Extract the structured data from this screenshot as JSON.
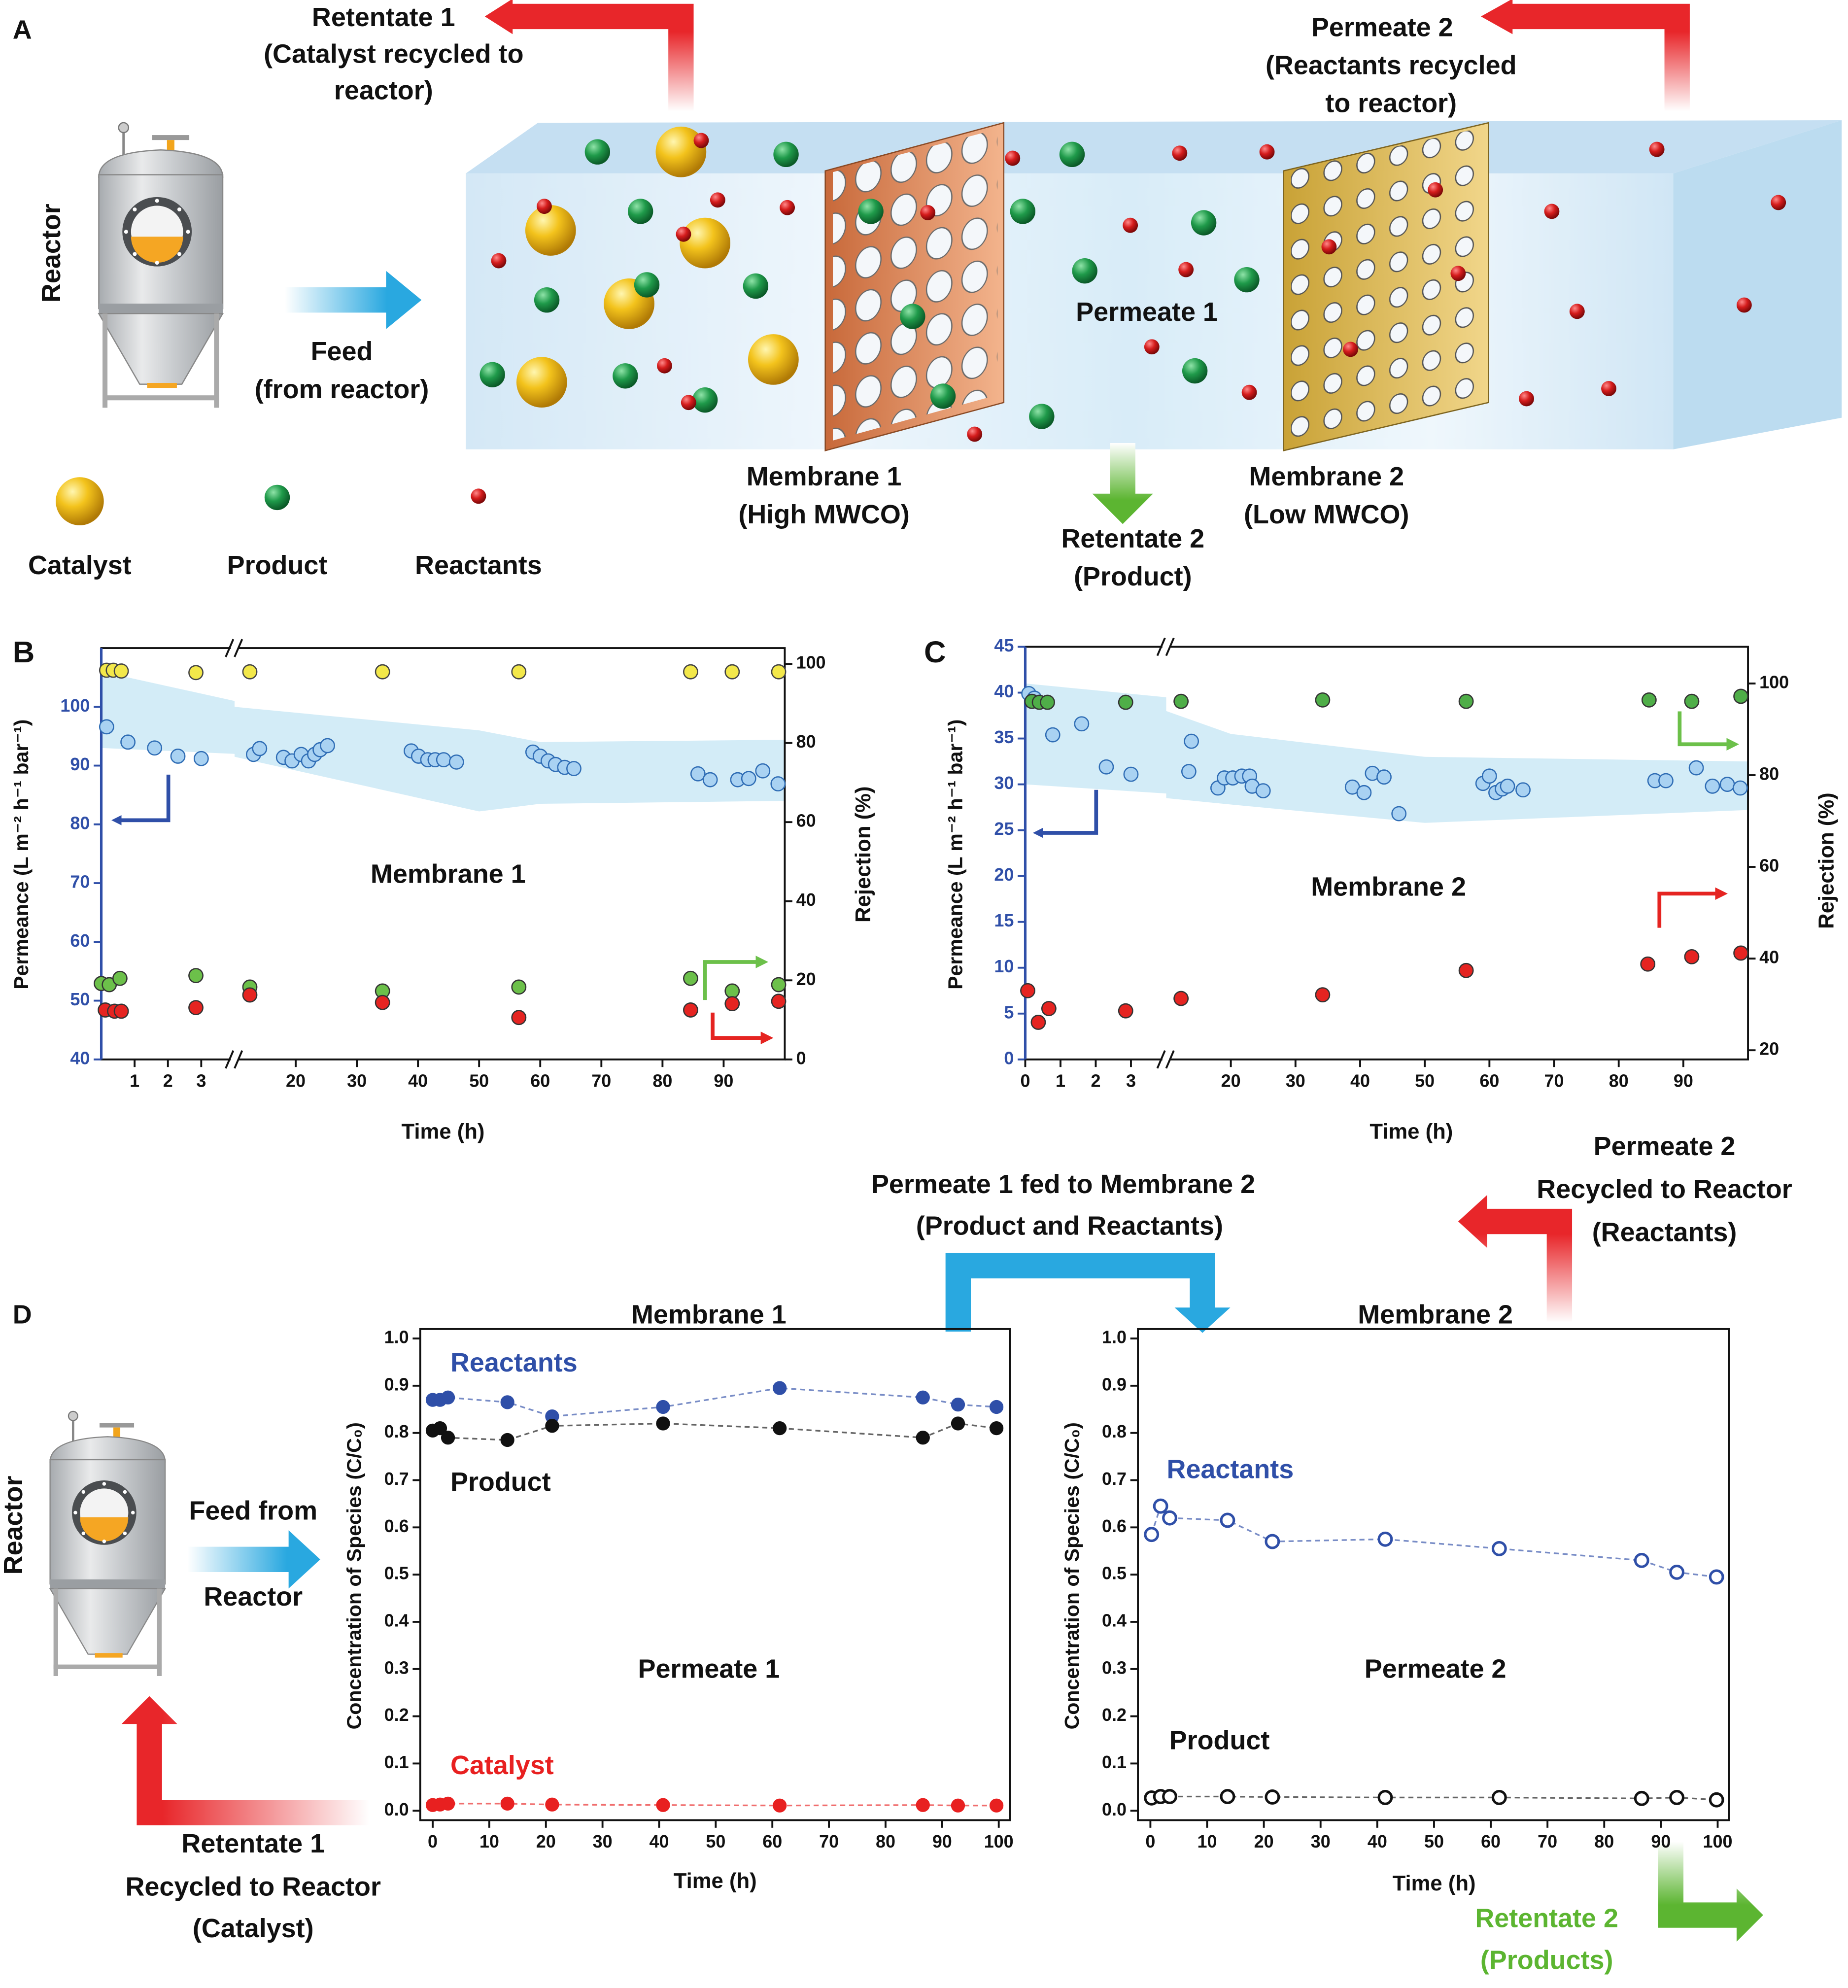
{
  "panel_a": {
    "label": "A",
    "retentate_1": [
      "Retentate 1",
      "(Catalyst recycled to",
      "reactor)"
    ],
    "permeate_2": [
      "Permeate 2",
      "(Reactants recycled",
      "to reactor)"
    ],
    "reactor": "Reactor",
    "feed": [
      "Feed",
      "(from reactor)"
    ],
    "permeate_1": "Permeate 1",
    "membrane_1": [
      "Membrane 1",
      "(High MWCO)"
    ],
    "retentate_2": [
      "Retentate 2",
      "(Product)"
    ],
    "membrane_2": [
      "Membrane 2",
      "(Low MWCO)"
    ],
    "legend": [
      "Catalyst",
      "Product",
      "Reactants"
    ]
  },
  "panel_d": {
    "label": "D",
    "reactor": "Reactor",
    "feed": [
      "Feed from",
      "Reactor"
    ],
    "permeate_1_fed": [
      "Permeate 1 fed to Membrane 2",
      "(Product and Reactants)"
    ],
    "permeate_2_recycled": [
      "Permeate 2",
      "Recycled to Reactor",
      "(Reactants)"
    ],
    "retentate_1_recycled": [
      "Retentate 1",
      "Recycled to Reactor",
      "(Catalyst)"
    ],
    "retentate_2": [
      "Retentate 2",
      "(Products)"
    ]
  },
  "chart_data": [
    {
      "type": "scatter",
      "label": "B",
      "annotation": "Membrane 1",
      "xlabel": "Time (h)",
      "ylabel": "Permeance (L m⁻² h⁻¹ bar⁻¹)",
      "y2label": "Rejection (%)",
      "ycolor": "#2f4fa8",
      "x_axis_break": true,
      "xlim": [
        0,
        100
      ],
      "xticks": [
        1,
        2,
        3,
        20,
        30,
        40,
        50,
        60,
        70,
        80,
        90
      ],
      "ylim": [
        40,
        110
      ],
      "yticks": [
        40,
        50,
        60,
        70,
        80,
        90,
        100
      ],
      "y2lim": [
        0,
        104
      ],
      "y2ticks": [
        0,
        20,
        40,
        60,
        80,
        100
      ],
      "band": {
        "color": "#d3ecf7",
        "x": [
          0,
          4,
          10,
          50,
          60,
          100
        ],
        "upper": [
          106,
          101,
          100,
          96,
          94,
          94.4
        ],
        "lower": [
          93,
          92,
          91.5,
          82.2,
          83.5,
          84
        ]
      },
      "series": [
        {
          "color": "#a9d2f2",
          "edgecolor": "#2f6db5",
          "x": [
            0.16,
            0.8,
            1.6,
            2.3,
            3.0,
            13.1,
            14.1,
            18,
            19.4,
            20.9,
            22.1,
            23.1,
            24,
            25.2,
            38.9,
            40.1,
            41.6,
            42.8,
            44.2,
            46.3,
            58.8,
            60,
            61.3,
            62.5,
            64,
            65.5,
            85.8,
            87.8,
            92.3,
            94.1,
            96.4,
            98.9
          ],
          "values": [
            96.6,
            94,
            93,
            91.6,
            91.2,
            91.9,
            92.9,
            91.4,
            90.8,
            91.9,
            90.8,
            91.9,
            92.7,
            93.4,
            92.5,
            91.6,
            91,
            91,
            91,
            90.6,
            92.3,
            91.6,
            90.8,
            90.2,
            89.7,
            89.5,
            88.6,
            87.6,
            87.6,
            87.8,
            89.1,
            86.9
          ]
        },
        {
          "color": "#f3e84a",
          "edgecolor": "#444",
          "axis": "y2",
          "x": [
            0.16,
            0.36,
            0.6,
            2.84,
            12.5,
            34.2,
            56.5,
            84.6,
            91.4,
            99
          ],
          "values": [
            98.4,
            98.4,
            98.2,
            97.8,
            98,
            98,
            98,
            98,
            98,
            98
          ]
        },
        {
          "color": "#6cc04a",
          "edgecolor": "#333",
          "axis": "y2",
          "x": [
            0,
            0.24,
            0.56,
            2.84,
            12.5,
            34.2,
            56.5,
            84.6,
            91.4,
            99
          ],
          "values": [
            19.2,
            18.9,
            20.5,
            21.2,
            18.3,
            17.3,
            18.3,
            20.5,
            17.3,
            18.9
          ]
        },
        {
          "color": "#e52421",
          "edgecolor": "#333",
          "axis": "y2",
          "x": [
            0.12,
            0.4,
            0.6,
            2.84,
            12.5,
            34.2,
            56.5,
            84.6,
            91.4,
            99
          ],
          "values": [
            12.5,
            12.2,
            12.2,
            13.1,
            16.3,
            14.4,
            10.6,
            12.5,
            14.1,
            14.7
          ]
        }
      ]
    },
    {
      "type": "scatter",
      "label": "C",
      "annotation": "Membrane 2",
      "xlabel": "Time (h)",
      "ylabel": "Permeance (L m⁻² h⁻¹ bar⁻¹)",
      "y2label": "Rejection (%)",
      "ycolor": "#2f4fa8",
      "x_axis_break": true,
      "xlim": [
        0,
        100
      ],
      "xticks": [
        0,
        1,
        2,
        3,
        20,
        30,
        40,
        50,
        60,
        70,
        80,
        90
      ],
      "ylim": [
        0,
        45
      ],
      "yticks": [
        0,
        5,
        10,
        15,
        20,
        25,
        30,
        35,
        40,
        45
      ],
      "y2lim": [
        18,
        108
      ],
      "y2ticks": [
        20,
        40,
        60,
        80,
        100
      ],
      "band": {
        "color": "#d3ecf7",
        "x": [
          0,
          4,
          10,
          20,
          50,
          100
        ],
        "upper": [
          41,
          39.5,
          38,
          35.5,
          33,
          32.5
        ],
        "lower": [
          30,
          29,
          28.5,
          27.8,
          25.8,
          27.2
        ]
      },
      "series": [
        {
          "color": "#a9d2f2",
          "edgecolor": "#2f6db5",
          "x": [
            0.1,
            0.26,
            0.78,
            1.6,
            2.3,
            3.0,
            13.9,
            13.5,
            18,
            19,
            20.3,
            21.7,
            22.9,
            23.3,
            25,
            38.8,
            40.6,
            41.9,
            43.7,
            46,
            59,
            60,
            61,
            62,
            62.8,
            65.2,
            85.6,
            87.3,
            92,
            94.5,
            96.8,
            98.8
          ],
          "values": [
            39.9,
            39.4,
            35.4,
            36.6,
            31.9,
            31.1,
            34.7,
            31.4,
            29.6,
            30.7,
            30.7,
            30.9,
            30.9,
            29.8,
            29.3,
            29.7,
            29.1,
            31.2,
            30.8,
            26.8,
            30.1,
            30.9,
            29.1,
            29.5,
            29.8,
            29.4,
            30.4,
            30.4,
            31.8,
            29.8,
            30,
            29.6
          ]
        },
        {
          "color": "#4fae48",
          "edgecolor": "#333",
          "axis": "y2",
          "x": [
            0.19,
            0.4,
            0.63,
            2.85,
            12.3,
            34.2,
            56.4,
            84.7,
            91.3,
            98.9
          ],
          "values": [
            96.1,
            95.9,
            95.9,
            95.9,
            96.1,
            96.4,
            96.1,
            96.4,
            96.1,
            97.2
          ]
        },
        {
          "color": "#e52421",
          "edgecolor": "#333",
          "axis": "y2",
          "x": [
            0.07,
            0.37,
            0.67,
            2.85,
            12.3,
            34.2,
            56.4,
            84.5,
            91.3,
            98.9
          ],
          "values": [
            33,
            26.1,
            29.1,
            28.6,
            31.3,
            32.1,
            37.4,
            38.8,
            40.4,
            41.2
          ]
        }
      ]
    },
    {
      "type": "line",
      "title": "Membrane 1",
      "annotation": "Permeate 1",
      "xlabel": "Time (h)",
      "ylabel": "Concentration of Species (C/C₀)",
      "xlim": [
        -2.2,
        102
      ],
      "xticks": [
        0,
        10,
        20,
        30,
        40,
        50,
        60,
        70,
        80,
        90,
        100
      ],
      "ylim": [
        -0.02,
        1.02
      ],
      "yticks": [
        {
          "value": 0,
          "label": "0.0"
        },
        0.1,
        0.2,
        0.3,
        0.4,
        0.5,
        0.6,
        0.7,
        0.8,
        0.9,
        {
          "value": 1,
          "label": "1.0"
        }
      ],
      "x": [
        0,
        1.3,
        2.7,
        13.2,
        21.1,
        40.7,
        61.3,
        86.6,
        92.8,
        99.6
      ],
      "series": [
        {
          "name": "Reactants",
          "color": "#2f4fa8",
          "filled": true,
          "values": [
            0.87,
            0.87,
            0.875,
            0.865,
            0.835,
            0.855,
            0.895,
            0.875,
            0.86,
            0.855
          ]
        },
        {
          "name": "Product",
          "color": "#111111",
          "filled": true,
          "values": [
            0.805,
            0.81,
            0.79,
            0.785,
            0.815,
            0.82,
            0.81,
            0.79,
            0.82,
            0.81
          ]
        },
        {
          "name": "Catalyst",
          "color": "#e82020",
          "filled": true,
          "values": [
            0.012,
            0.013,
            0.015,
            0.015,
            0.013,
            0.012,
            0.011,
            0.012,
            0.011,
            0.011
          ]
        }
      ]
    },
    {
      "type": "line",
      "title": "Membrane 2",
      "annotation": "Permeate 2",
      "xlabel": "Time (h)",
      "ylabel": "Concentration of Species (C/C₀)",
      "xlim": [
        -2.2,
        102
      ],
      "xticks": [
        0,
        10,
        20,
        30,
        40,
        50,
        60,
        70,
        80,
        90,
        100
      ],
      "ylim": [
        -0.02,
        1.02
      ],
      "yticks": [
        {
          "value": 0,
          "label": "0.0"
        },
        0.1,
        0.2,
        0.3,
        0.4,
        0.5,
        0.6,
        0.7,
        0.8,
        0.9,
        {
          "value": 1,
          "label": "1.0"
        }
      ],
      "x": [
        0.2,
        1.8,
        3.4,
        13.6,
        21.5,
        41.4,
        61.5,
        86.6,
        92.8,
        99.8
      ],
      "series": [
        {
          "name": "Reactants",
          "color": "#2f4fa8",
          "filled": false,
          "values": [
            0.585,
            0.645,
            0.62,
            0.615,
            0.57,
            0.575,
            0.555,
            0.53,
            0.505,
            0.495
          ]
        },
        {
          "name": "Product",
          "color": "#111111",
          "filled": false,
          "values": [
            0.027,
            0.03,
            0.03,
            0.03,
            0.029,
            0.028,
            0.028,
            0.026,
            0.028,
            0.023
          ]
        }
      ]
    }
  ]
}
